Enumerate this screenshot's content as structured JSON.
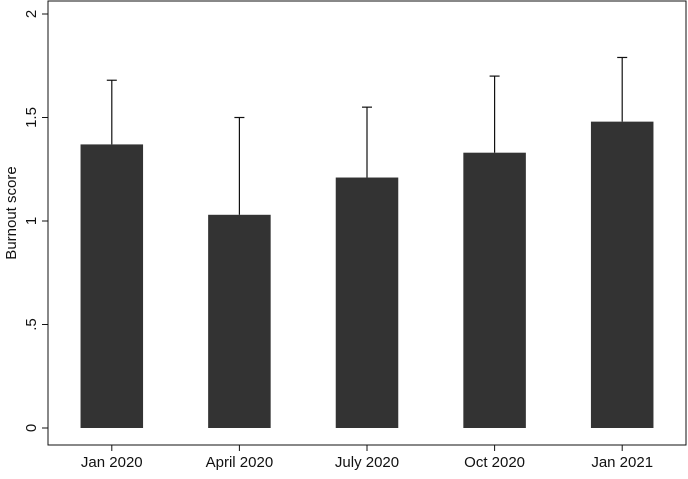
{
  "chart_data": {
    "type": "bar",
    "y_label": "Burnout score",
    "categories": [
      "Jan 2020",
      "April 2020",
      "July 2020",
      "Oct 2020",
      "Jan 2021"
    ],
    "values": [
      1.37,
      1.03,
      1.21,
      1.33,
      1.48
    ],
    "errors": [
      0.31,
      0.47,
      0.34,
      0.37,
      0.31
    ],
    "color": "#333333",
    "ylim": [
      0,
      2
    ],
    "yticks": [
      0,
      {
        "value": 0.5,
        "label": ".5"
      },
      1,
      1.5,
      2
    ]
  }
}
